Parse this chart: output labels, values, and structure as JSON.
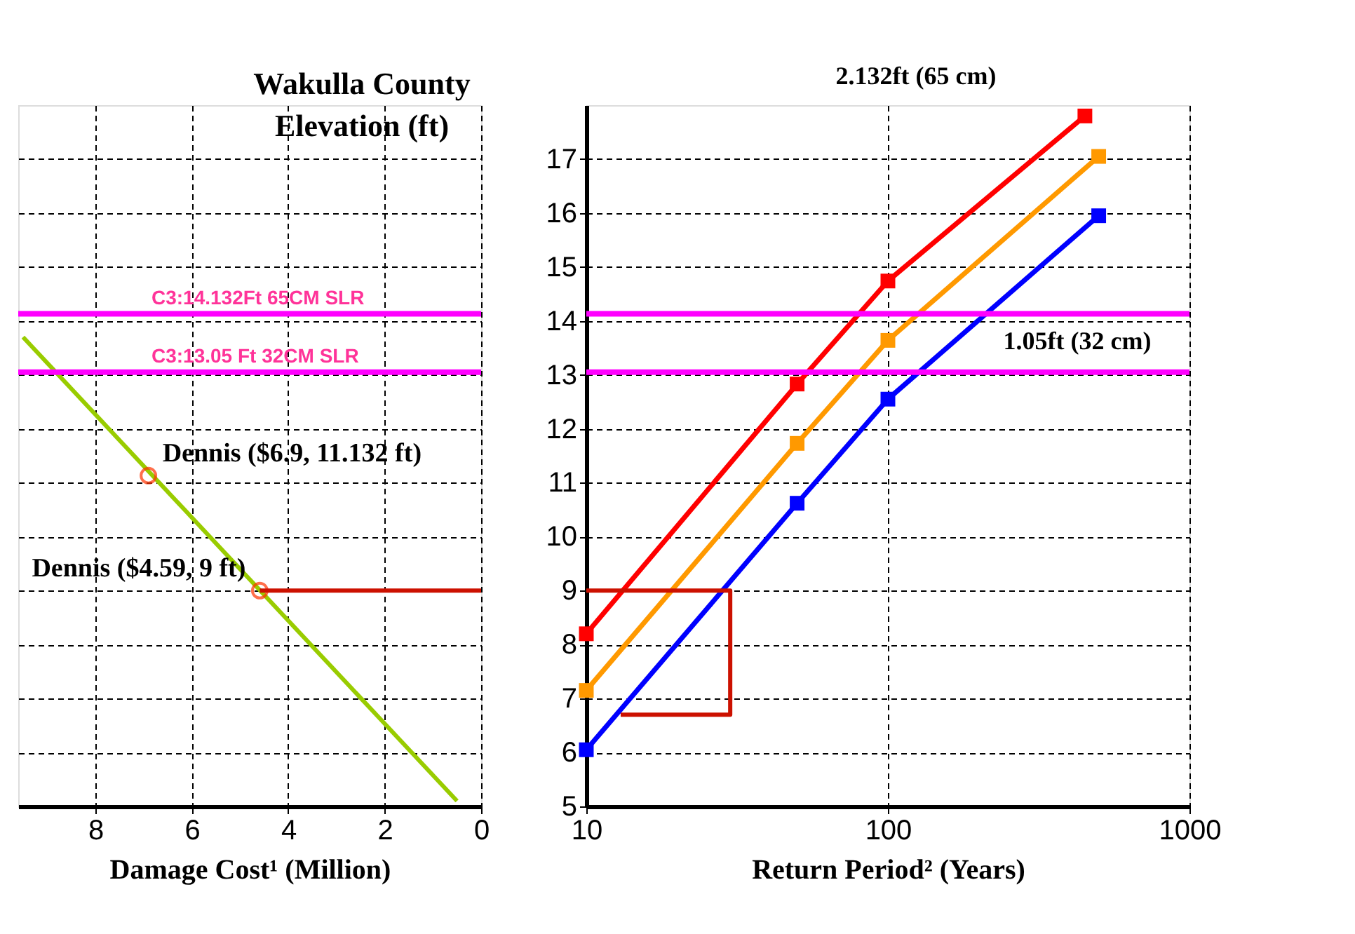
{
  "chart_data": [
    {
      "type": "line",
      "title": "Wakulla County",
      "ylabel": "Elevation (ft)",
      "xlabel": "Damage Cost¹ (Million)",
      "xlim": [
        9.6,
        0
      ],
      "xticks": [
        8,
        6,
        4,
        2,
        0
      ],
      "ylim": [
        5,
        18
      ],
      "yticks": [
        5,
        6,
        7,
        8,
        9,
        10,
        11,
        12,
        13,
        14,
        15,
        16,
        17
      ],
      "grid": true,
      "tick_labels": "x",
      "series": [
        {
          "color": "#99cc00",
          "x": [
            9.5,
            0.5
          ],
          "values": [
            13.7,
            5.1
          ],
          "marker": "none"
        },
        {
          "type": "scatter",
          "color": "#ff3300",
          "x": [
            6.9,
            4.59
          ],
          "values": [
            11.132,
            9
          ],
          "marker": "circle"
        },
        {
          "color": "#cc1100",
          "x": [
            4.59,
            0
          ],
          "values": [
            9,
            9
          ],
          "marker": "none"
        }
      ],
      "ref_lines": [
        {
          "axis": "y",
          "value": 14.132,
          "label": "C3:14.132Ft 65CM SLR",
          "color": "#ff00ff"
        },
        {
          "axis": "y",
          "value": 13.05,
          "label": "C3:13.05 Ft 32CM SLR",
          "color": "#ff00ff"
        }
      ],
      "annotations": [
        {
          "text": "Dennis ($6.9, 11.132 ft)",
          "x": 6.9,
          "y": 11.132
        },
        {
          "text": "Dennis ($4.59, 9 ft)",
          "x": 4.59,
          "y": 9
        }
      ]
    },
    {
      "type": "line",
      "xlabel": "Return Period² (Years)",
      "log": "x",
      "xlim": [
        10,
        1000
      ],
      "xticks": [
        10,
        100,
        {
          "value": 1000,
          "label": "1000"
        }
      ],
      "ylim": [
        5,
        18
      ],
      "yticks": [
        5,
        6,
        7,
        8,
        9,
        10,
        11,
        12,
        13,
        14,
        15,
        16,
        17
      ],
      "grid": true,
      "marker": "square",
      "series": [
        {
          "color": "#ff0000",
          "x": [
            10,
            50,
            100,
            450
          ],
          "values": [
            8.2,
            12.83,
            14.74,
            17.8
          ]
        },
        {
          "color": "#ff9900",
          "x": [
            10,
            50,
            100,
            500
          ],
          "values": [
            7.15,
            11.73,
            13.64,
            17.05
          ]
        },
        {
          "color": "#0000ff",
          "x": [
            10,
            50,
            100,
            500
          ],
          "values": [
            6.05,
            10.62,
            12.55,
            15.95
          ]
        },
        {
          "color": "#cc1100",
          "x": [
            10,
            30,
            30,
            13
          ],
          "values": [
            9,
            9,
            6.7,
            6.7
          ],
          "marker": "none"
        }
      ],
      "ref_lines": [
        {
          "axis": "y",
          "value": 14.132,
          "label": null,
          "color": "#ff00ff"
        },
        {
          "axis": "y",
          "value": 13.05,
          "label": null,
          "color": "#ff00ff"
        }
      ],
      "annotations": [
        "2.132ft  (65 cm)",
        "1.05ft (32 cm)"
      ]
    }
  ]
}
